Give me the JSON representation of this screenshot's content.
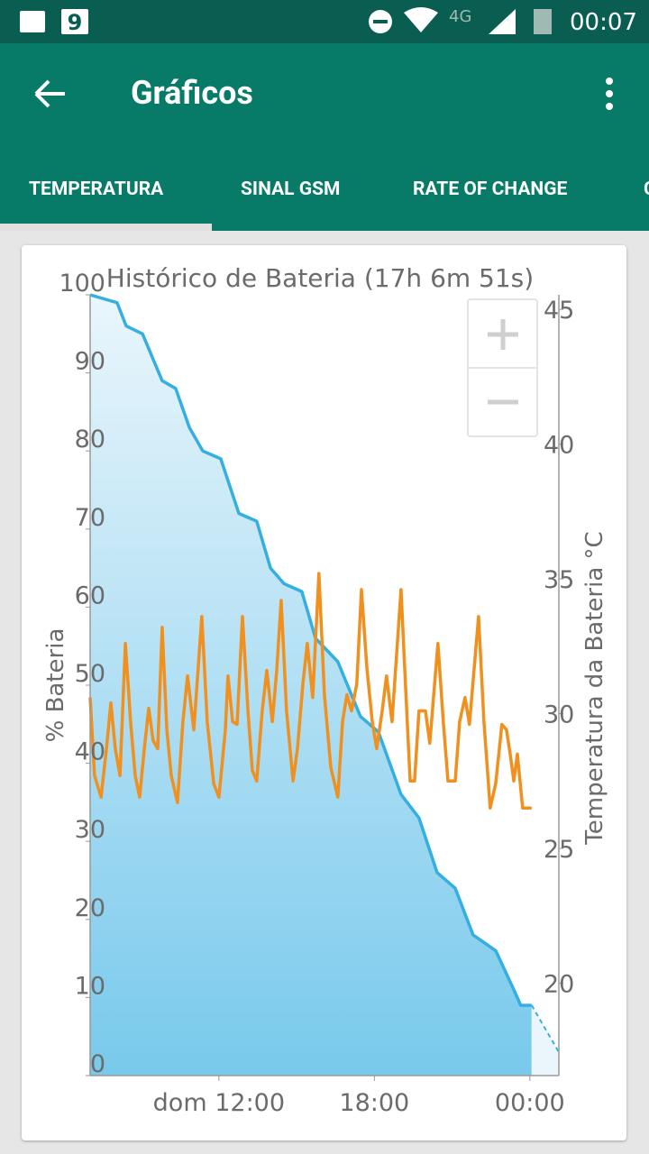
{
  "status_bar": {
    "notification": "9",
    "network": "4G",
    "time": "00:07"
  },
  "app_bar": {
    "title": "Gráficos"
  },
  "tabs": {
    "items": [
      "TEMPERATURA",
      "SINAL GSM",
      "RATE OF CHANGE",
      "C"
    ],
    "selected": 0
  },
  "chart_data": {
    "type": "line",
    "title": "Histórico de Bateria (17h 6m 51s)",
    "y_label": "% Bateria",
    "y2_label": "Temperatura da Bateria °C",
    "xlim": [
      7.03,
      25.12
    ],
    "xticks": [
      {
        "value": 12,
        "label": "dom 12:00"
      },
      {
        "value": 18,
        "label": "18:00"
      },
      {
        "value": 24,
        "label": "00:00"
      }
    ],
    "ylim": [
      0,
      100
    ],
    "yticks": [
      0,
      10,
      20,
      30,
      40,
      50,
      60,
      70,
      80,
      90,
      100
    ],
    "y2lim": [
      16.57,
      45.54
    ],
    "y2ticks": [
      20,
      25,
      30,
      35,
      40,
      45
    ],
    "series": [
      {
        "color": "#35aee0",
        "fill": true,
        "x": [
          7.03,
          8.07,
          8.42,
          9.05,
          9.81,
          10.33,
          10.86,
          11.38,
          12.07,
          12.77,
          13.46,
          13.99,
          14.51,
          15.2,
          15.73,
          16.59,
          17.46,
          18.16,
          19.03,
          19.72,
          20.42,
          21.12,
          21.81,
          22.68,
          23.38,
          23.65,
          24.07
        ],
        "values": [
          100,
          99,
          96,
          95,
          89,
          88,
          83,
          80,
          79,
          72,
          71,
          65,
          63,
          62,
          56,
          53,
          46,
          44,
          36,
          33,
          26,
          24,
          18,
          16,
          11,
          9,
          9
        ],
        "projection": {
          "x": [
            24.07,
            25.12
          ],
          "values": [
            9,
            3
          ]
        }
      },
      {
        "color": "#f0901e",
        "axis": "y2",
        "x": [
          7.03,
          7.2,
          7.45,
          7.66,
          7.83,
          8.0,
          8.18,
          8.39,
          8.6,
          8.77,
          8.94,
          9.12,
          9.29,
          9.46,
          9.64,
          9.81,
          9.99,
          10.16,
          10.4,
          10.61,
          10.79,
          11.03,
          11.34,
          11.55,
          11.8,
          12.0,
          12.25,
          12.35,
          12.53,
          12.7,
          12.91,
          13.12,
          13.29,
          13.46,
          13.67,
          13.85,
          14.06,
          14.23,
          14.4,
          14.61,
          14.86,
          15.03,
          15.24,
          15.41,
          15.62,
          15.86,
          16.07,
          16.32,
          16.59,
          16.77,
          16.94,
          17.12,
          17.32,
          17.5,
          17.71,
          17.92,
          18.09,
          18.3,
          18.47,
          18.68,
          19.03,
          19.2,
          19.38,
          19.55,
          19.72,
          19.97,
          20.14,
          20.45,
          20.66,
          20.84,
          21.12,
          21.29,
          21.5,
          21.67,
          22.02,
          22.23,
          22.47,
          22.68,
          22.92,
          23.1,
          23.24,
          23.38,
          23.52,
          23.72,
          24.07
        ],
        "values": [
          30.6,
          27.7,
          26.9,
          28.7,
          30.4,
          28.7,
          27.7,
          32.6,
          29.6,
          27.7,
          26.9,
          28.7,
          30.2,
          29.0,
          28.7,
          33.2,
          29.4,
          27.7,
          26.7,
          29.7,
          31.4,
          29.4,
          33.6,
          29.7,
          27.4,
          26.9,
          29.4,
          31.4,
          29.7,
          29.6,
          33.6,
          30.1,
          27.9,
          27.5,
          30.1,
          31.6,
          29.7,
          31.6,
          34.2,
          30.1,
          27.5,
          28.7,
          31.1,
          32.6,
          30.6,
          35.2,
          30.7,
          28.0,
          26.9,
          29.7,
          30.7,
          30.1,
          31.1,
          34.6,
          31.7,
          29.7,
          28.7,
          30.1,
          31.4,
          29.7,
          34.6,
          31.1,
          27.5,
          27.5,
          30.1,
          30.1,
          28.9,
          32.6,
          29.7,
          27.5,
          27.5,
          29.7,
          30.6,
          29.6,
          33.6,
          29.7,
          26.5,
          27.4,
          29.6,
          29.4,
          28.5,
          27.5,
          28.5,
          26.5,
          26.5
        ]
      }
    ]
  }
}
